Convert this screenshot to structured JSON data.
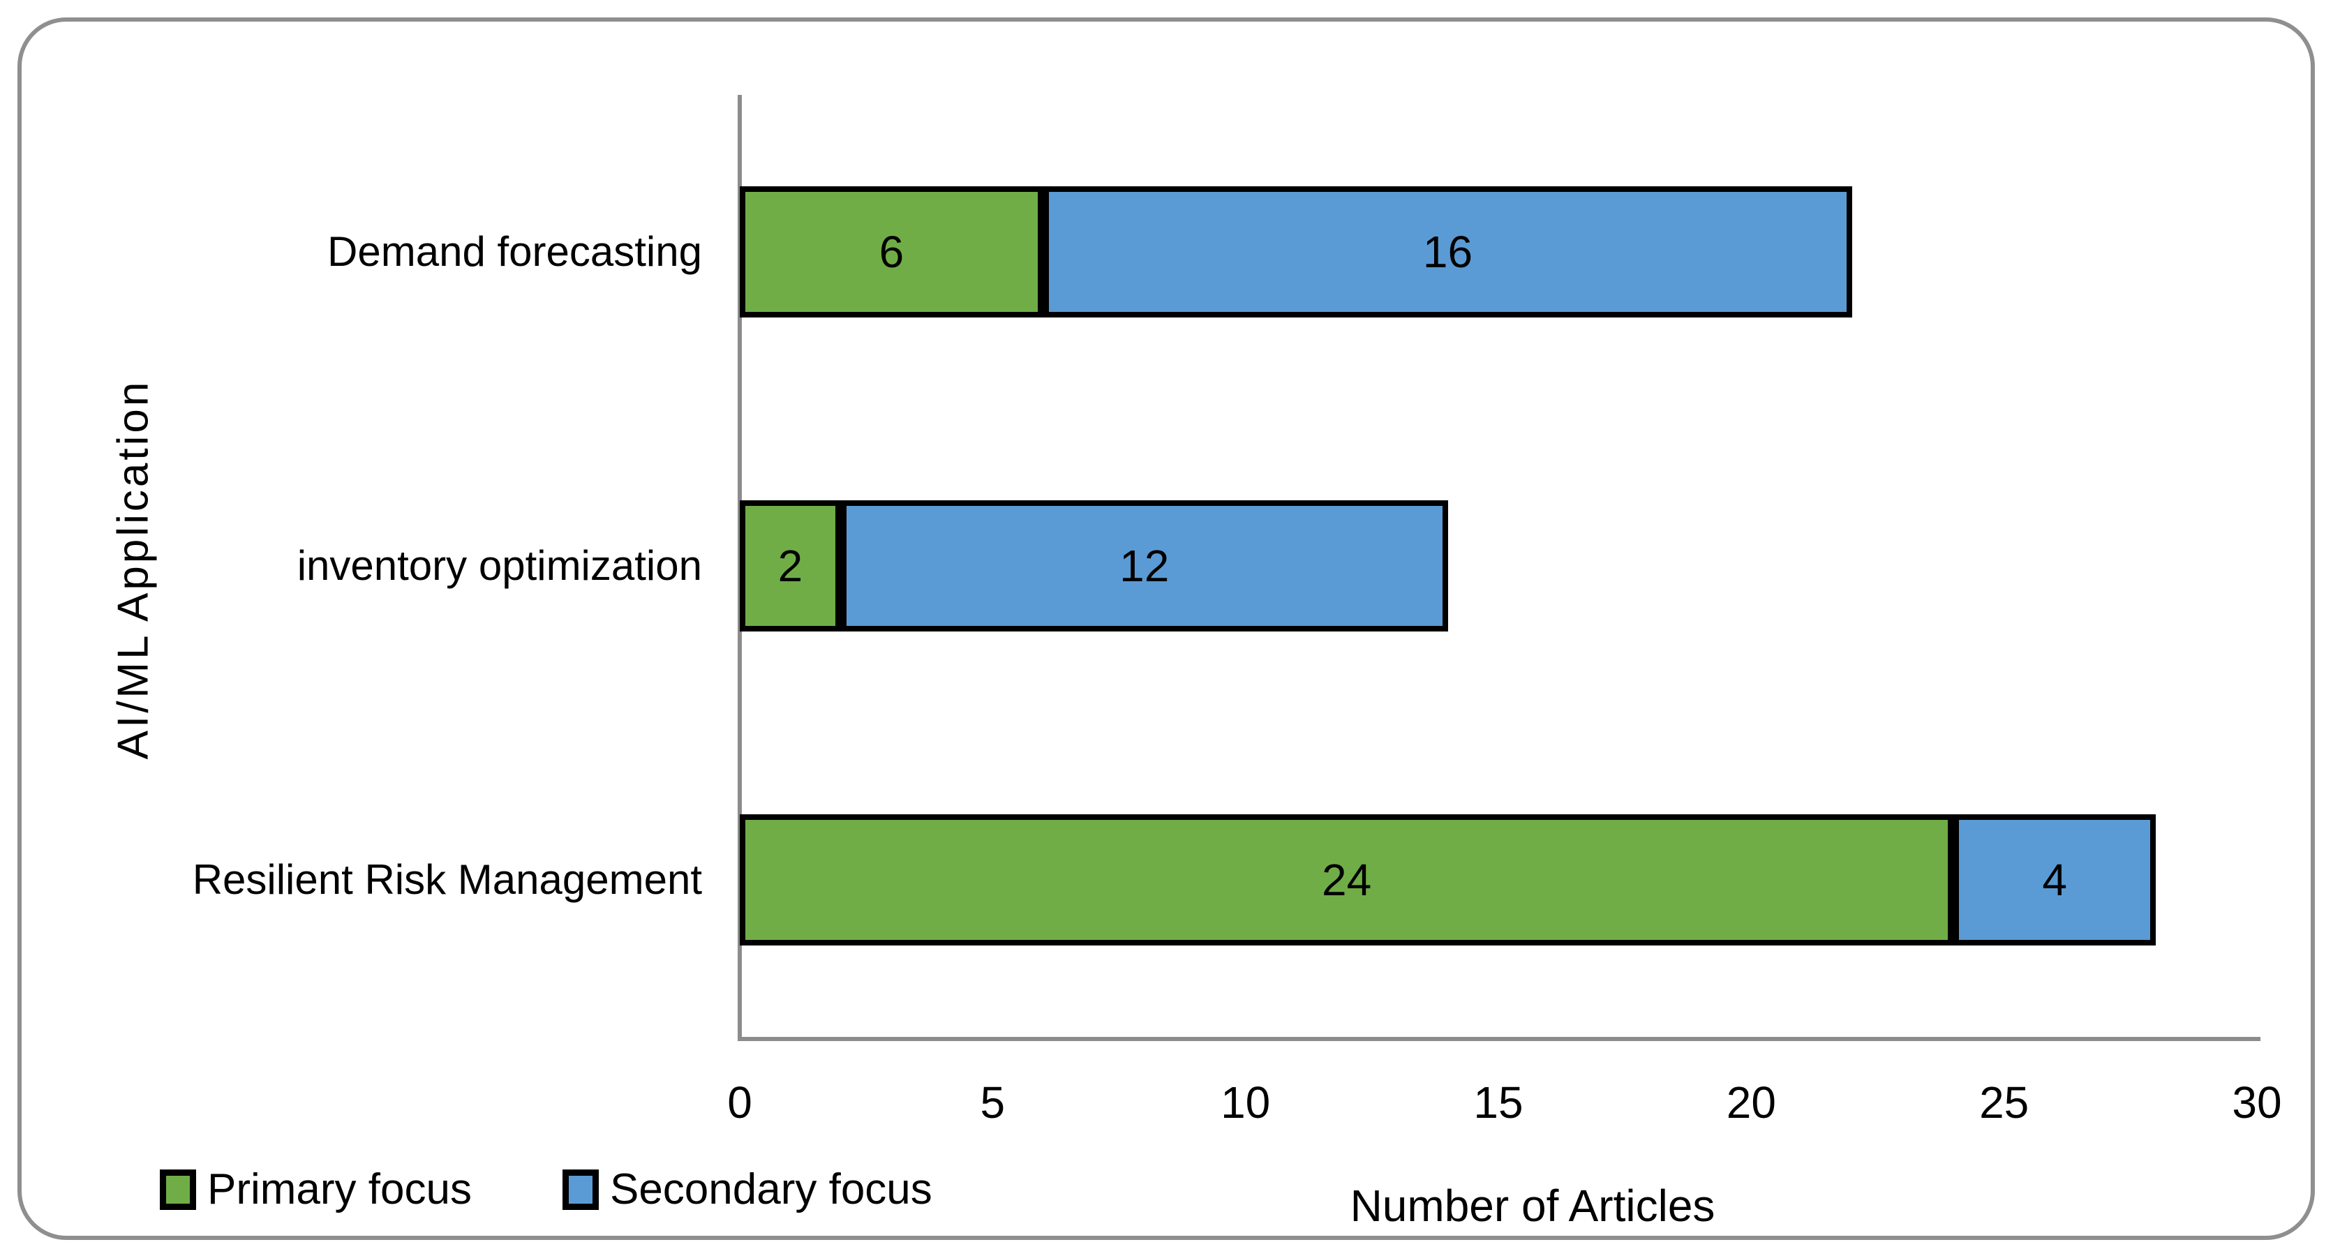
{
  "chart_data": {
    "type": "bar",
    "orientation": "horizontal",
    "stacked": true,
    "title": "",
    "xlabel": "Number of Articles",
    "ylabel": "AI/ML Application",
    "categories": [
      "Demand forecasting",
      "inventory optimization",
      "Resilient Risk Management"
    ],
    "series": [
      {
        "name": "Primary focus",
        "color": "#70AD47",
        "values": [
          6,
          2,
          24
        ]
      },
      {
        "name": "Secondary focus",
        "color": "#5B9BD5",
        "values": [
          16,
          12,
          4
        ]
      }
    ],
    "totals": [
      22,
      14,
      28
    ],
    "xlim": [
      0,
      30
    ],
    "xticks": [
      0,
      5,
      10,
      15,
      20,
      25,
      30
    ],
    "grid": false,
    "legend_position": "bottom-left",
    "bar_border_color": "#000000",
    "axis_color": "#8C8C8C",
    "frame_border_color": "#8F8F8F",
    "text_color": "#000000"
  }
}
